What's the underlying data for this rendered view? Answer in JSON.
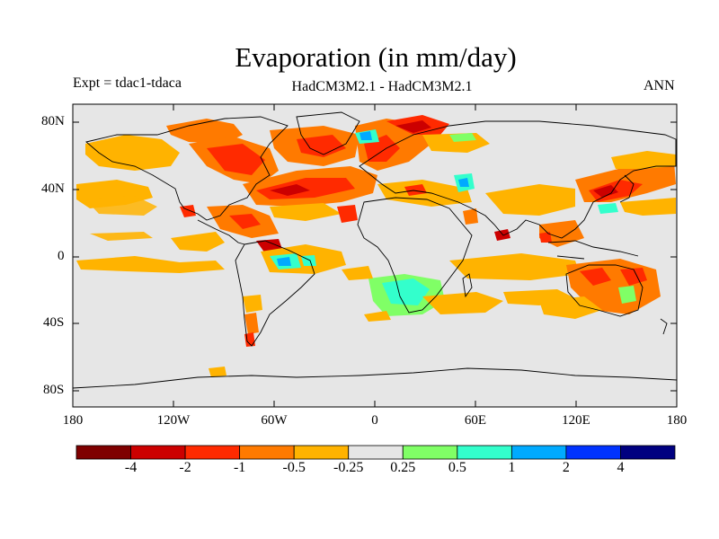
{
  "title": "Evaporation (in mm/day)",
  "subtitle_left": "Expt = tdac1-tdaca",
  "subtitle_center": "HadCM3M2.1 - HadCM3M2.1",
  "subtitle_right": "ANN",
  "lat_labels": [
    "80N",
    "40N",
    "0",
    "40S",
    "80S"
  ],
  "lon_labels": [
    "180",
    "120W",
    "60W",
    "0",
    "60E",
    "120E",
    "180"
  ],
  "colorbar": {
    "labels": [
      "-4",
      "-2",
      "-1",
      "-0.5",
      "-0.25",
      "0.25",
      "0.5",
      "1",
      "2",
      "4"
    ],
    "colors": [
      "#7f0000",
      "#cc0000",
      "#ff2a00",
      "#ff7a00",
      "#ffb300",
      "#e6e6e6",
      "#80ff66",
      "#33ffcc",
      "#00aaff",
      "#0033ff",
      "#000080"
    ]
  },
  "colors": {
    "background": "#e6e6e6",
    "land_outline": "#000000"
  }
}
